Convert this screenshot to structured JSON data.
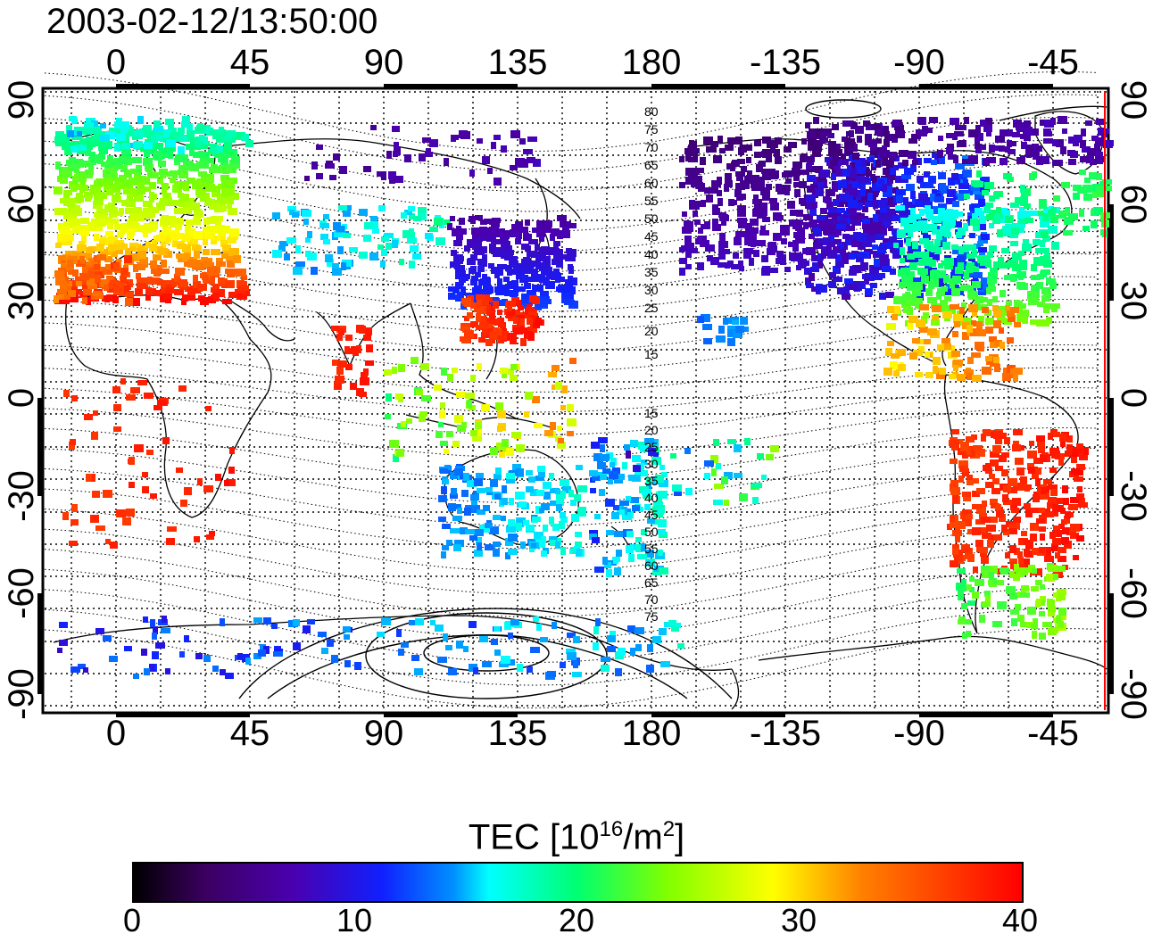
{
  "header": {
    "timestamp": "2003-02-12/13:50:00"
  },
  "map": {
    "top_ticks": [
      "0",
      "45",
      "90",
      "135",
      "180",
      "-135",
      "-90",
      "-45"
    ],
    "bottom_ticks": [
      "0",
      "45",
      "90",
      "135",
      "180",
      "-135",
      "-90",
      "-45"
    ],
    "left_ticks": [
      "90",
      "60",
      "30",
      "0",
      "-30",
      "-60",
      "-90"
    ],
    "right_ticks": [
      "90",
      "60",
      "30",
      "0",
      "-30",
      "-60",
      "-90"
    ],
    "contour_labels_north": [
      "80",
      "75",
      "70",
      "65",
      "60",
      "55",
      "50",
      "45",
      "40",
      "35",
      "30",
      "25",
      "20",
      "15"
    ],
    "contour_labels_south": [
      "15",
      "20",
      "25",
      "30",
      "35",
      "40",
      "45",
      "50",
      "55",
      "60",
      "65",
      "70",
      "75"
    ]
  },
  "colorbar": {
    "title_prefix": "TEC  [10",
    "title_exp1": "16",
    "title_mid": "/m",
    "title_exp2": "2",
    "title_suffix": "]",
    "ticks": [
      "0",
      "10",
      "20",
      "30",
      "40"
    ],
    "colors": {
      "min": "#000000",
      "low": "#4a00b0",
      "mid_low": "#1020ff",
      "mid": "#00ffff",
      "mid_high": "#00ff70",
      "high": "#ffff00",
      "max": "#ff0000"
    }
  },
  "regions": [
    {
      "name": "europe",
      "tec": 24
    },
    {
      "name": "mediterranean",
      "tec": 36
    },
    {
      "name": "east-asia",
      "tec": 9
    },
    {
      "name": "china-south",
      "tec": 40
    },
    {
      "name": "north-america",
      "tec": 9
    },
    {
      "name": "usa-east",
      "tec": 22
    },
    {
      "name": "south-america",
      "tec": 40
    },
    {
      "name": "australia",
      "tec": 17
    },
    {
      "name": "antarctica",
      "tec": 12
    }
  ]
}
